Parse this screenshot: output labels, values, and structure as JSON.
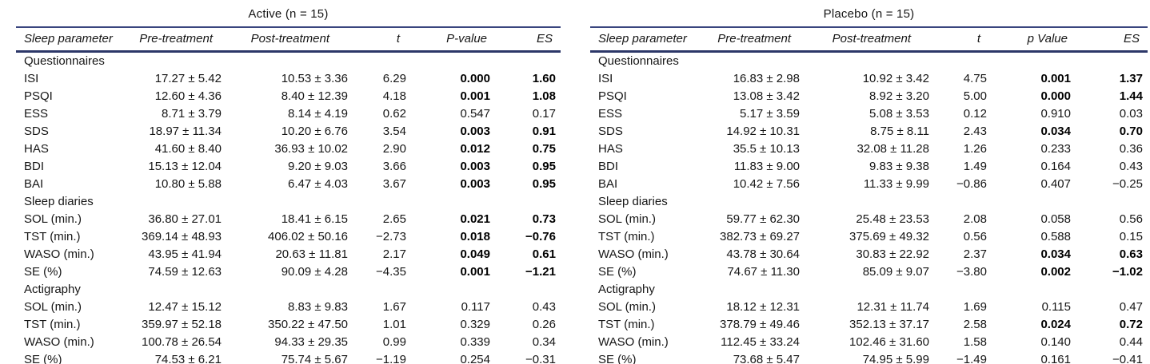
{
  "rules": {
    "color_top": "#39457e",
    "color_header": "#2c3768"
  },
  "groups": [
    {
      "id": "active",
      "caption": "Active (n = 15)",
      "columns": [
        "Sleep parameter",
        "Pre-treatment",
        "Post-treatment",
        "t",
        "P-value",
        "ES"
      ],
      "sections": [
        {
          "label": "Questionnaires",
          "rows": [
            {
              "param": "ISI",
              "pre": "17.27 ± 5.42",
              "post": "10.53 ± 3.36",
              "t": "6.29",
              "p": "0.000",
              "es": "1.60",
              "sig": true
            },
            {
              "param": "PSQI",
              "pre": "12.60 ± 4.36",
              "post": "8.40 ± 12.39",
              "t": "4.18",
              "p": "0.001",
              "es": "1.08",
              "sig": true
            },
            {
              "param": "ESS",
              "pre": "8.71 ± 3.79",
              "post": "8.14 ± 4.19",
              "t": "0.62",
              "p": "0.547",
              "es": "0.17",
              "sig": false
            },
            {
              "param": "SDS",
              "pre": "18.97 ± 11.34",
              "post": "10.20 ± 6.76",
              "t": "3.54",
              "p": "0.003",
              "es": "0.91",
              "sig": true
            },
            {
              "param": "HAS",
              "pre": "41.60 ± 8.40",
              "post": "36.93 ± 10.02",
              "t": "2.90",
              "p": "0.012",
              "es": "0.75",
              "sig": true
            },
            {
              "param": "BDI",
              "pre": "15.13 ± 12.04",
              "post": "9.20 ± 9.03",
              "t": "3.66",
              "p": "0.003",
              "es": "0.95",
              "sig": true
            },
            {
              "param": "BAI",
              "pre": "10.80 ± 5.88",
              "post": "6.47 ± 4.03",
              "t": "3.67",
              "p": "0.003",
              "es": "0.95",
              "sig": true
            }
          ]
        },
        {
          "label": "Sleep diaries",
          "rows": [
            {
              "param": "SOL (min.)",
              "pre": "36.80 ± 27.01",
              "post": "18.41 ± 6.15",
              "t": "2.65",
              "p": "0.021",
              "es": "0.73",
              "sig": true
            },
            {
              "param": "TST (min.)",
              "pre": "369.14 ± 48.93",
              "post": "406.02 ± 50.16",
              "t": "−2.73",
              "p": "0.018",
              "es": "−0.76",
              "sig": true
            },
            {
              "param": "WASO (min.)",
              "pre": "43.95 ± 41.94",
              "post": "20.63 ± 11.81",
              "t": "2.17",
              "p": "0.049",
              "es": "0.61",
              "sig": true
            },
            {
              "param": "SE (%)",
              "pre": "74.59 ± 12.63",
              "post": "90.09 ± 4.28",
              "t": "−4.35",
              "p": "0.001",
              "es": "−1.21",
              "sig": true
            }
          ]
        },
        {
          "label": "Actigraphy",
          "rows": [
            {
              "param": "SOL (min.)",
              "pre": "12.47 ± 15.12",
              "post": "8.83 ± 9.83",
              "t": "1.67",
              "p": "0.117",
              "es": "0.43",
              "sig": false
            },
            {
              "param": "TST (min.)",
              "pre": "359.97 ± 52.18",
              "post": "350.22 ± 47.50",
              "t": "1.01",
              "p": "0.329",
              "es": "0.26",
              "sig": false
            },
            {
              "param": "WASO (min.)",
              "pre": "100.78 ± 26.54",
              "post": "94.33 ± 29.35",
              "t": "0.99",
              "p": "0.339",
              "es": "0.34",
              "sig": false
            },
            {
              "param": "SE (%)",
              "pre": "74.53 ± 6.21",
              "post": "75.74 ± 5.67",
              "t": "−1.19",
              "p": "0.254",
              "es": "−0.31",
              "sig": false
            }
          ]
        }
      ]
    },
    {
      "id": "placebo",
      "caption": "Placebo (n = 15)",
      "columns": [
        "Sleep parameter",
        "Pre-treatment",
        "Post-treatment",
        "t",
        "p Value",
        "ES"
      ],
      "sections": [
        {
          "label": "Questionnaires",
          "rows": [
            {
              "param": "ISI",
              "pre": "16.83 ± 2.98",
              "post": "10.92 ± 3.42",
              "t": "4.75",
              "p": "0.001",
              "es": "1.37",
              "sig": true
            },
            {
              "param": "PSQI",
              "pre": "13.08 ± 3.42",
              "post": "8.92 ± 3.20",
              "t": "5.00",
              "p": "0.000",
              "es": "1.44",
              "sig": true
            },
            {
              "param": "ESS",
              "pre": "5.17 ± 3.59",
              "post": "5.08 ± 3.53",
              "t": "0.12",
              "p": "0.910",
              "es": "0.03",
              "sig": false
            },
            {
              "param": "SDS",
              "pre": "14.92 ± 10.31",
              "post": "8.75 ± 8.11",
              "t": "2.43",
              "p": "0.034",
              "es": "0.70",
              "sig": true
            },
            {
              "param": "HAS",
              "pre": "35.5 ± 10.13",
              "post": "32.08 ± 11.28",
              "t": "1.26",
              "p": "0.233",
              "es": "0.36",
              "sig": false
            },
            {
              "param": "BDI",
              "pre": "11.83 ± 9.00",
              "post": "9.83 ± 9.38",
              "t": "1.49",
              "p": "0.164",
              "es": "0.43",
              "sig": false
            },
            {
              "param": "BAI",
              "pre": "10.42 ± 7.56",
              "post": "11.33 ± 9.99",
              "t": "−0.86",
              "p": "0.407",
              "es": "−0.25",
              "sig": false
            }
          ]
        },
        {
          "label": "Sleep diaries",
          "rows": [
            {
              "param": "SOL (min.)",
              "pre": "59.77 ± 62.30",
              "post": "25.48 ± 23.53",
              "t": "2.08",
              "p": "0.058",
              "es": "0.56",
              "sig": false
            },
            {
              "param": "TST (min.)",
              "pre": "382.73 ± 69.27",
              "post": "375.69 ± 49.32",
              "t": "0.56",
              "p": "0.588",
              "es": "0.15",
              "sig": false
            },
            {
              "param": "WASO (min.)",
              "pre": "43.78 ± 30.64",
              "post": "30.83 ± 22.92",
              "t": "2.37",
              "p": "0.034",
              "es": "0.63",
              "sig": true
            },
            {
              "param": "SE (%)",
              "pre": "74.67 ± 11.30",
              "post": "85.09 ± 9.07",
              "t": "−3.80",
              "p": "0.002",
              "es": "−1.02",
              "sig": true
            }
          ]
        },
        {
          "label": "Actigraphy",
          "rows": [
            {
              "param": "SOL (min.)",
              "pre": "18.12 ± 12.31",
              "post": "12.31 ± 11.74",
              "t": "1.69",
              "p": "0.115",
              "es": "0.47",
              "sig": false
            },
            {
              "param": "TST (min.)",
              "pre": "378.79 ± 49.46",
              "post": "352.13 ± 37.17",
              "t": "2.58",
              "p": "0.024",
              "es": "0.72",
              "sig": true
            },
            {
              "param": "WASO (min.)",
              "pre": "112.45 ± 33.24",
              "post": "102.46 ± 31.60",
              "t": "1.58",
              "p": "0.140",
              "es": "0.44",
              "sig": false
            },
            {
              "param": "SE (%)",
              "pre": "73.68 ± 5.47",
              "post": "74.95 ± 5.99",
              "t": "−1.49",
              "p": "0.161",
              "es": "−0.41",
              "sig": false
            }
          ]
        }
      ]
    }
  ]
}
